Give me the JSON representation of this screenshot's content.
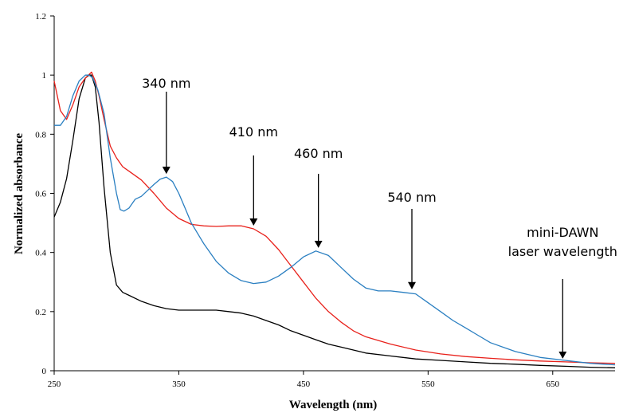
{
  "chart_data": {
    "type": "line",
    "title": "",
    "xlabel": "Wavelength (nm)",
    "ylabel": "Normalized absorbance",
    "xlim": [
      250,
      700
    ],
    "ylim": [
      0,
      1.2
    ],
    "xticks": [
      "250",
      "350",
      "450",
      "550",
      "650"
    ],
    "yticks": [
      "0",
      "0.2",
      "0.4",
      "0.6",
      "0.8",
      "1",
      "1.2"
    ],
    "grid": false,
    "legend": "none",
    "series": [
      {
        "color": "#000000",
        "x": [
          250,
          255,
          260,
          265,
          270,
          275,
          278,
          280,
          283,
          286,
          290,
          295,
          300,
          305,
          310,
          320,
          330,
          340,
          350,
          360,
          370,
          380,
          390,
          400,
          410,
          420,
          430,
          440,
          450,
          460,
          470,
          480,
          490,
          500,
          520,
          540,
          560,
          580,
          600,
          620,
          640,
          660,
          680,
          700
        ],
        "y": [
          0.52,
          0.57,
          0.65,
          0.78,
          0.92,
          0.99,
          1.0,
          1.0,
          0.96,
          0.84,
          0.62,
          0.4,
          0.29,
          0.265,
          0.255,
          0.235,
          0.22,
          0.21,
          0.205,
          0.205,
          0.205,
          0.205,
          0.2,
          0.195,
          0.185,
          0.17,
          0.155,
          0.135,
          0.12,
          0.105,
          0.09,
          0.08,
          0.07,
          0.06,
          0.05,
          0.04,
          0.035,
          0.03,
          0.025,
          0.022,
          0.018,
          0.015,
          0.012,
          0.01
        ]
      },
      {
        "color": "#e8201a",
        "x": [
          250,
          255,
          260,
          265,
          270,
          275,
          280,
          283,
          286,
          290,
          295,
          300,
          305,
          310,
          320,
          330,
          340,
          350,
          360,
          370,
          380,
          390,
          400,
          410,
          420,
          430,
          440,
          450,
          460,
          470,
          480,
          490,
          500,
          520,
          540,
          560,
          580,
          600,
          620,
          640,
          660,
          680,
          700
        ],
        "y": [
          0.98,
          0.88,
          0.85,
          0.9,
          0.96,
          0.99,
          1.01,
          0.98,
          0.93,
          0.85,
          0.76,
          0.72,
          0.69,
          0.675,
          0.645,
          0.6,
          0.55,
          0.515,
          0.495,
          0.49,
          0.488,
          0.49,
          0.49,
          0.48,
          0.455,
          0.41,
          0.355,
          0.3,
          0.245,
          0.2,
          0.165,
          0.135,
          0.115,
          0.09,
          0.07,
          0.057,
          0.048,
          0.042,
          0.037,
          0.033,
          0.03,
          0.027,
          0.025
        ]
      },
      {
        "color": "#2a7fc1",
        "x": [
          250,
          255,
          260,
          265,
          270,
          275,
          278,
          281,
          285,
          290,
          295,
          300,
          303,
          306,
          310,
          315,
          320,
          325,
          330,
          335,
          340,
          345,
          350,
          355,
          360,
          370,
          380,
          390,
          400,
          410,
          420,
          430,
          440,
          450,
          460,
          470,
          480,
          490,
          500,
          510,
          520,
          530,
          540,
          550,
          560,
          570,
          580,
          590,
          600,
          620,
          640,
          660,
          680,
          700
        ],
        "y": [
          0.83,
          0.83,
          0.86,
          0.93,
          0.98,
          1.0,
          1.0,
          0.99,
          0.95,
          0.87,
          0.72,
          0.6,
          0.545,
          0.54,
          0.55,
          0.58,
          0.59,
          0.61,
          0.63,
          0.648,
          0.655,
          0.64,
          0.6,
          0.55,
          0.5,
          0.43,
          0.37,
          0.33,
          0.305,
          0.295,
          0.3,
          0.32,
          0.35,
          0.385,
          0.405,
          0.39,
          0.35,
          0.31,
          0.28,
          0.27,
          0.27,
          0.265,
          0.26,
          0.23,
          0.2,
          0.17,
          0.145,
          0.12,
          0.095,
          0.065,
          0.045,
          0.035,
          0.025,
          0.02
        ]
      }
    ],
    "annotations": [
      {
        "label": "340 nm",
        "x": 340,
        "y": 0.655
      },
      {
        "label": "410 nm",
        "x": 410,
        "y": 0.48
      },
      {
        "label": "460 nm",
        "x": 462,
        "y": 0.405
      },
      {
        "label": "540 nm",
        "x": 537,
        "y": 0.265
      },
      {
        "label": "mini-DAWN",
        "label2": "laser wavelength",
        "x": 658,
        "y": 0.03
      }
    ]
  }
}
